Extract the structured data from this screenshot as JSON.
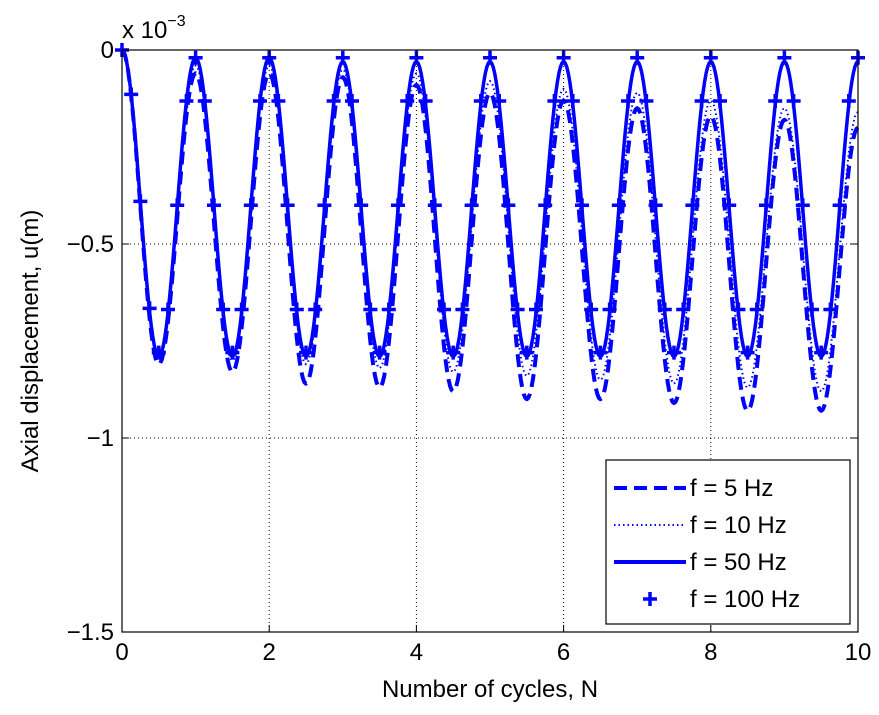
{
  "chart_data": {
    "type": "line",
    "title": "",
    "xlabel": "Number of cycles, N",
    "ylabel": "Axial displacement, u(m)",
    "y_exponent_base": "x 10",
    "y_exponent_power": "−3",
    "xlim": [
      0,
      10
    ],
    "ylim": [
      -1.5,
      0
    ],
    "x_ticks": [
      0,
      2,
      4,
      6,
      8,
      10
    ],
    "x_tick_labels": [
      "0",
      "2",
      "4",
      "6",
      "8",
      "10"
    ],
    "y_ticks": [
      -1.5,
      -1,
      -0.5,
      0
    ],
    "y_tick_labels": [
      "−1.5",
      "−1",
      "−0.5",
      "0"
    ],
    "grid": true,
    "legend_position": "bottom-right",
    "color": "#0000ff",
    "series": [
      {
        "name": "f = 5 Hz",
        "style": "dashed",
        "x": [
          0,
          0.5,
          1,
          1.5,
          2,
          2.5,
          3,
          3.5,
          4,
          4.5,
          5,
          5.5,
          6,
          6.5,
          7,
          7.5,
          8,
          8.5,
          9,
          9.5,
          10
        ],
        "y": [
          0,
          -0.81,
          -0.06,
          -0.83,
          -0.06,
          -0.86,
          -0.07,
          -0.87,
          -0.09,
          -0.88,
          -0.11,
          -0.9,
          -0.13,
          -0.9,
          -0.15,
          -0.91,
          -0.17,
          -0.93,
          -0.18,
          -0.93,
          -0.2
        ]
      },
      {
        "name": "f = 10 Hz",
        "style": "dotted",
        "x": [
          0,
          0.5,
          1,
          1.5,
          2,
          2.5,
          3,
          3.5,
          4,
          4.5,
          5,
          5.5,
          6,
          6.5,
          7,
          7.5,
          8,
          8.5,
          9,
          9.5,
          10
        ],
        "y": [
          0,
          -0.8,
          -0.04,
          -0.8,
          -0.04,
          -0.81,
          -0.05,
          -0.82,
          -0.06,
          -0.83,
          -0.08,
          -0.84,
          -0.1,
          -0.85,
          -0.11,
          -0.86,
          -0.13,
          -0.87,
          -0.15,
          -0.88,
          -0.16
        ]
      },
      {
        "name": "f = 50 Hz",
        "style": "solid",
        "x": [
          0,
          0.5,
          1,
          1.5,
          2,
          2.5,
          3,
          3.5,
          4,
          4.5,
          5,
          5.5,
          6,
          6.5,
          7,
          7.5,
          8,
          8.5,
          9,
          9.5,
          10
        ],
        "y": [
          0,
          -0.79,
          -0.02,
          -0.79,
          -0.02,
          -0.79,
          -0.03,
          -0.79,
          -0.03,
          -0.79,
          -0.03,
          -0.79,
          -0.03,
          -0.79,
          -0.03,
          -0.79,
          -0.03,
          -0.79,
          -0.03,
          -0.79,
          -0.03
        ]
      },
      {
        "name": "f = 100 Hz",
        "style": "plus-markers",
        "x": [
          0,
          0.5,
          1,
          1.5,
          2,
          2.5,
          3,
          3.5,
          4,
          4.5,
          5,
          5.5,
          6,
          6.5,
          7,
          7.5,
          8,
          8.5,
          9,
          9.5,
          10
        ],
        "y": [
          0,
          -0.78,
          -0.02,
          -0.78,
          -0.02,
          -0.78,
          -0.02,
          -0.78,
          -0.02,
          -0.78,
          -0.02,
          -0.78,
          -0.02,
          -0.78,
          -0.02,
          -0.78,
          -0.02,
          -0.78,
          -0.02,
          -0.78,
          -0.02
        ]
      }
    ]
  }
}
